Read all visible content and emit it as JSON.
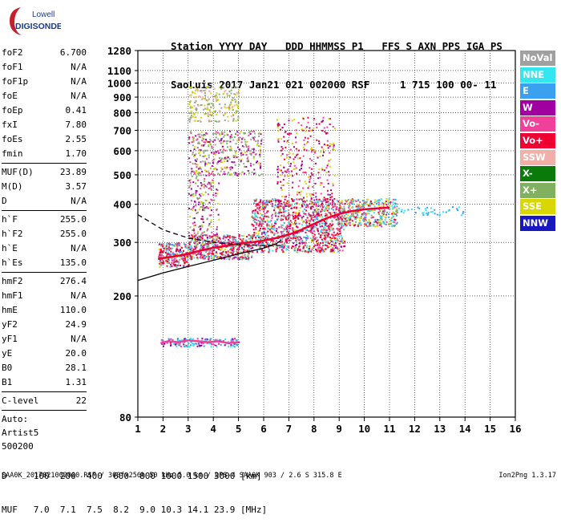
{
  "logo": {
    "line1": "Lowell",
    "line2": "DIGISONDE"
  },
  "header": {
    "line1": "Station YYYY DAY   DDD HHMMSS P1   FFS S AXN PPS IGA PS",
    "line2": "SaoLuis 2017 Jan21 021 002000 RSF     1 715 100 00- 11"
  },
  "params": {
    "group1": [
      {
        "label": "foF2",
        "value": "6.700"
      },
      {
        "label": "foF1",
        "value": "N/A"
      },
      {
        "label": "foF1p",
        "value": "N/A"
      },
      {
        "label": "foE",
        "value": "N/A"
      },
      {
        "label": "foEp",
        "value": "0.41"
      },
      {
        "label": "fxI",
        "value": "7.80"
      },
      {
        "label": "foEs",
        "value": "2.55"
      },
      {
        "label": "fmin",
        "value": "1.70"
      }
    ],
    "group2": [
      {
        "label": "MUF(D)",
        "value": "23.89"
      },
      {
        "label": "M(D)",
        "value": "3.57"
      },
      {
        "label": "D",
        "value": "N/A"
      }
    ],
    "group3": [
      {
        "label": "h`F",
        "value": "255.0"
      },
      {
        "label": "h`F2",
        "value": "255.0"
      },
      {
        "label": "h`E",
        "value": "N/A"
      },
      {
        "label": "h`Es",
        "value": "135.0"
      }
    ],
    "group4": [
      {
        "label": "hmF2",
        "value": "276.4"
      },
      {
        "label": "hmF1",
        "value": "N/A"
      },
      {
        "label": "hmE",
        "value": "110.0"
      },
      {
        "label": "yF2",
        "value": "24.9"
      },
      {
        "label": "yF1",
        "value": "N/A"
      },
      {
        "label": "yE",
        "value": "20.0"
      },
      {
        "label": "B0",
        "value": "28.1"
      },
      {
        "label": "B1",
        "value": "1.31"
      }
    ],
    "group5": [
      {
        "label": "C-level",
        "value": "22"
      }
    ],
    "auto_lines": [
      "Auto:",
      "Artist5",
      "500200"
    ]
  },
  "legend": [
    {
      "label": "NoVal",
      "color": "#a0a0a0"
    },
    {
      "label": "NNE",
      "color": "#33e6f0"
    },
    {
      "label": "E",
      "color": "#3aa0f0"
    },
    {
      "label": "W",
      "color": "#a000a0"
    },
    {
      "label": "Vo-",
      "color": "#f0409a"
    },
    {
      "label": "Vo+",
      "color": "#ee0033"
    },
    {
      "label": "SSW",
      "color": "#f0b0a8"
    },
    {
      "label": "X-",
      "color": "#0a7a0a"
    },
    {
      "label": "X+",
      "color": "#80b060"
    },
    {
      "label": "SSE",
      "color": "#d8d800"
    },
    {
      "label": "NNW",
      "color": "#1818c0"
    }
  ],
  "bottom": {
    "d_row": "D     100  200  400  600  800 1000 1500 3000 [km]",
    "muf_row": "MUF   7.0  7.1  7.5  8.2  9.0 10.3 14.1 23.9 [MHz]"
  },
  "footer": "SAA0K_2017021002000.RSF / 300fx256h 50 kHz 5.0 km / DPS-4 SAA0K 903 / 2.6 S 315.8 E",
  "version": "Ion2Png 1.3.17",
  "chart_data": {
    "type": "scatter",
    "x_ticks": [
      "1",
      "2",
      "3",
      "4",
      "5",
      "6",
      "7",
      "8",
      "9",
      "10",
      "11",
      "12",
      "13",
      "14",
      "15",
      "16"
    ],
    "y_ticks": [
      {
        "value": 80,
        "label": "80"
      },
      {
        "value": 200,
        "label": "200"
      },
      {
        "value": 300,
        "label": "300"
      },
      {
        "value": 400,
        "label": "400"
      },
      {
        "value": 500,
        "label": "500"
      },
      {
        "value": 600,
        "label": "600"
      },
      {
        "value": 700,
        "label": "700"
      },
      {
        "value": 800,
        "label": "800"
      },
      {
        "value": 900,
        "label": "900"
      },
      {
        "value": 1000,
        "label": "1000"
      },
      {
        "value": 1100,
        "label": "1100"
      },
      {
        "value": 1280,
        "label": "1280"
      }
    ],
    "xlim": [
      1,
      16
    ],
    "y_scale": "log",
    "ylim": [
      80,
      1280
    ],
    "grid": true,
    "traces": [
      {
        "name": "F2 virtual height",
        "color": "#ee0033",
        "x": [
          1.8,
          2.5,
          3.0,
          3.5,
          4.0,
          4.5,
          5.0,
          5.5,
          6.0,
          6.5,
          7.0,
          7.5,
          8.0,
          8.5,
          9.0,
          9.5,
          10.0,
          10.5,
          11.0
        ],
        "y": [
          265,
          270,
          275,
          282,
          288,
          292,
          297,
          300,
          304,
          310,
          318,
          330,
          345,
          360,
          372,
          380,
          385,
          388,
          390
        ]
      },
      {
        "name": "Es trace",
        "color": "#f0409a",
        "x": [
          1.9,
          2.2,
          2.6,
          3.0,
          3.4,
          3.8,
          4.2,
          4.6,
          5.0
        ],
        "y": [
          140,
          142,
          141,
          143,
          142,
          141,
          142,
          140,
          141
        ]
      },
      {
        "name": "profile",
        "color": "#000000",
        "x": [
          1.0,
          2.0,
          3.0,
          4.0,
          5.0,
          6.0,
          6.5,
          6.7
        ],
        "y": [
          225,
          238,
          250,
          262,
          275,
          287,
          297,
          305
        ]
      },
      {
        "name": "dashed",
        "color": "#000000",
        "x": [
          1.0,
          2.0,
          3.0,
          4.0,
          5.0,
          6.0,
          6.7
        ],
        "y": [
          370,
          330,
          310,
          300,
          295,
          293,
          293
        ]
      }
    ]
  }
}
